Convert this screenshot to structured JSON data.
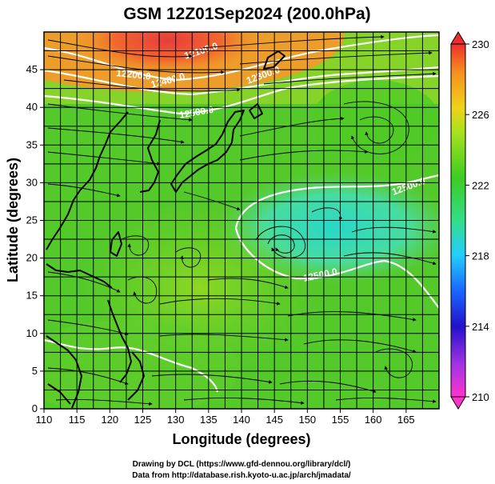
{
  "title": "GSM 12Z01Sep2024 (200.0hPa)",
  "chart_data": {
    "type": "heatmap",
    "xlabel": "Longitude (degrees)",
    "ylabel": "Latitude  (degrees)",
    "xlim": [
      110,
      170
    ],
    "ylim": [
      0,
      50
    ],
    "xticks": [
      "110",
      "115",
      "120",
      "125",
      "130",
      "135",
      "140",
      "145",
      "150",
      "155",
      "160",
      "165"
    ],
    "yticks": [
      "0",
      "5",
      "10",
      "15",
      "20",
      "25",
      "30",
      "35",
      "40",
      "45"
    ],
    "grid": true,
    "colorbar": {
      "range": [
        210,
        230
      ],
      "ticks": [
        "210",
        "214",
        "218",
        "222",
        "226",
        "230"
      ]
    },
    "contour_labels": [
      "12100.0",
      "12200.0",
      "12300.0",
      "12400.0",
      "12500.0",
      "12500.0",
      "12500.0"
    ],
    "colors": {
      "warm": "#e83c3c",
      "orange": "#f29a2a",
      "green": "#52cc2a",
      "cyan": "#34d4c0",
      "contour": "#ffffff",
      "coast": "#000000"
    }
  },
  "credits": {
    "line1": "Drawing by DCL (https://www.gfd-dennou.org/library/dcl/)",
    "line2": "Data from http://database.rish.kyoto-u.ac.jp/arch/jmadata/"
  }
}
